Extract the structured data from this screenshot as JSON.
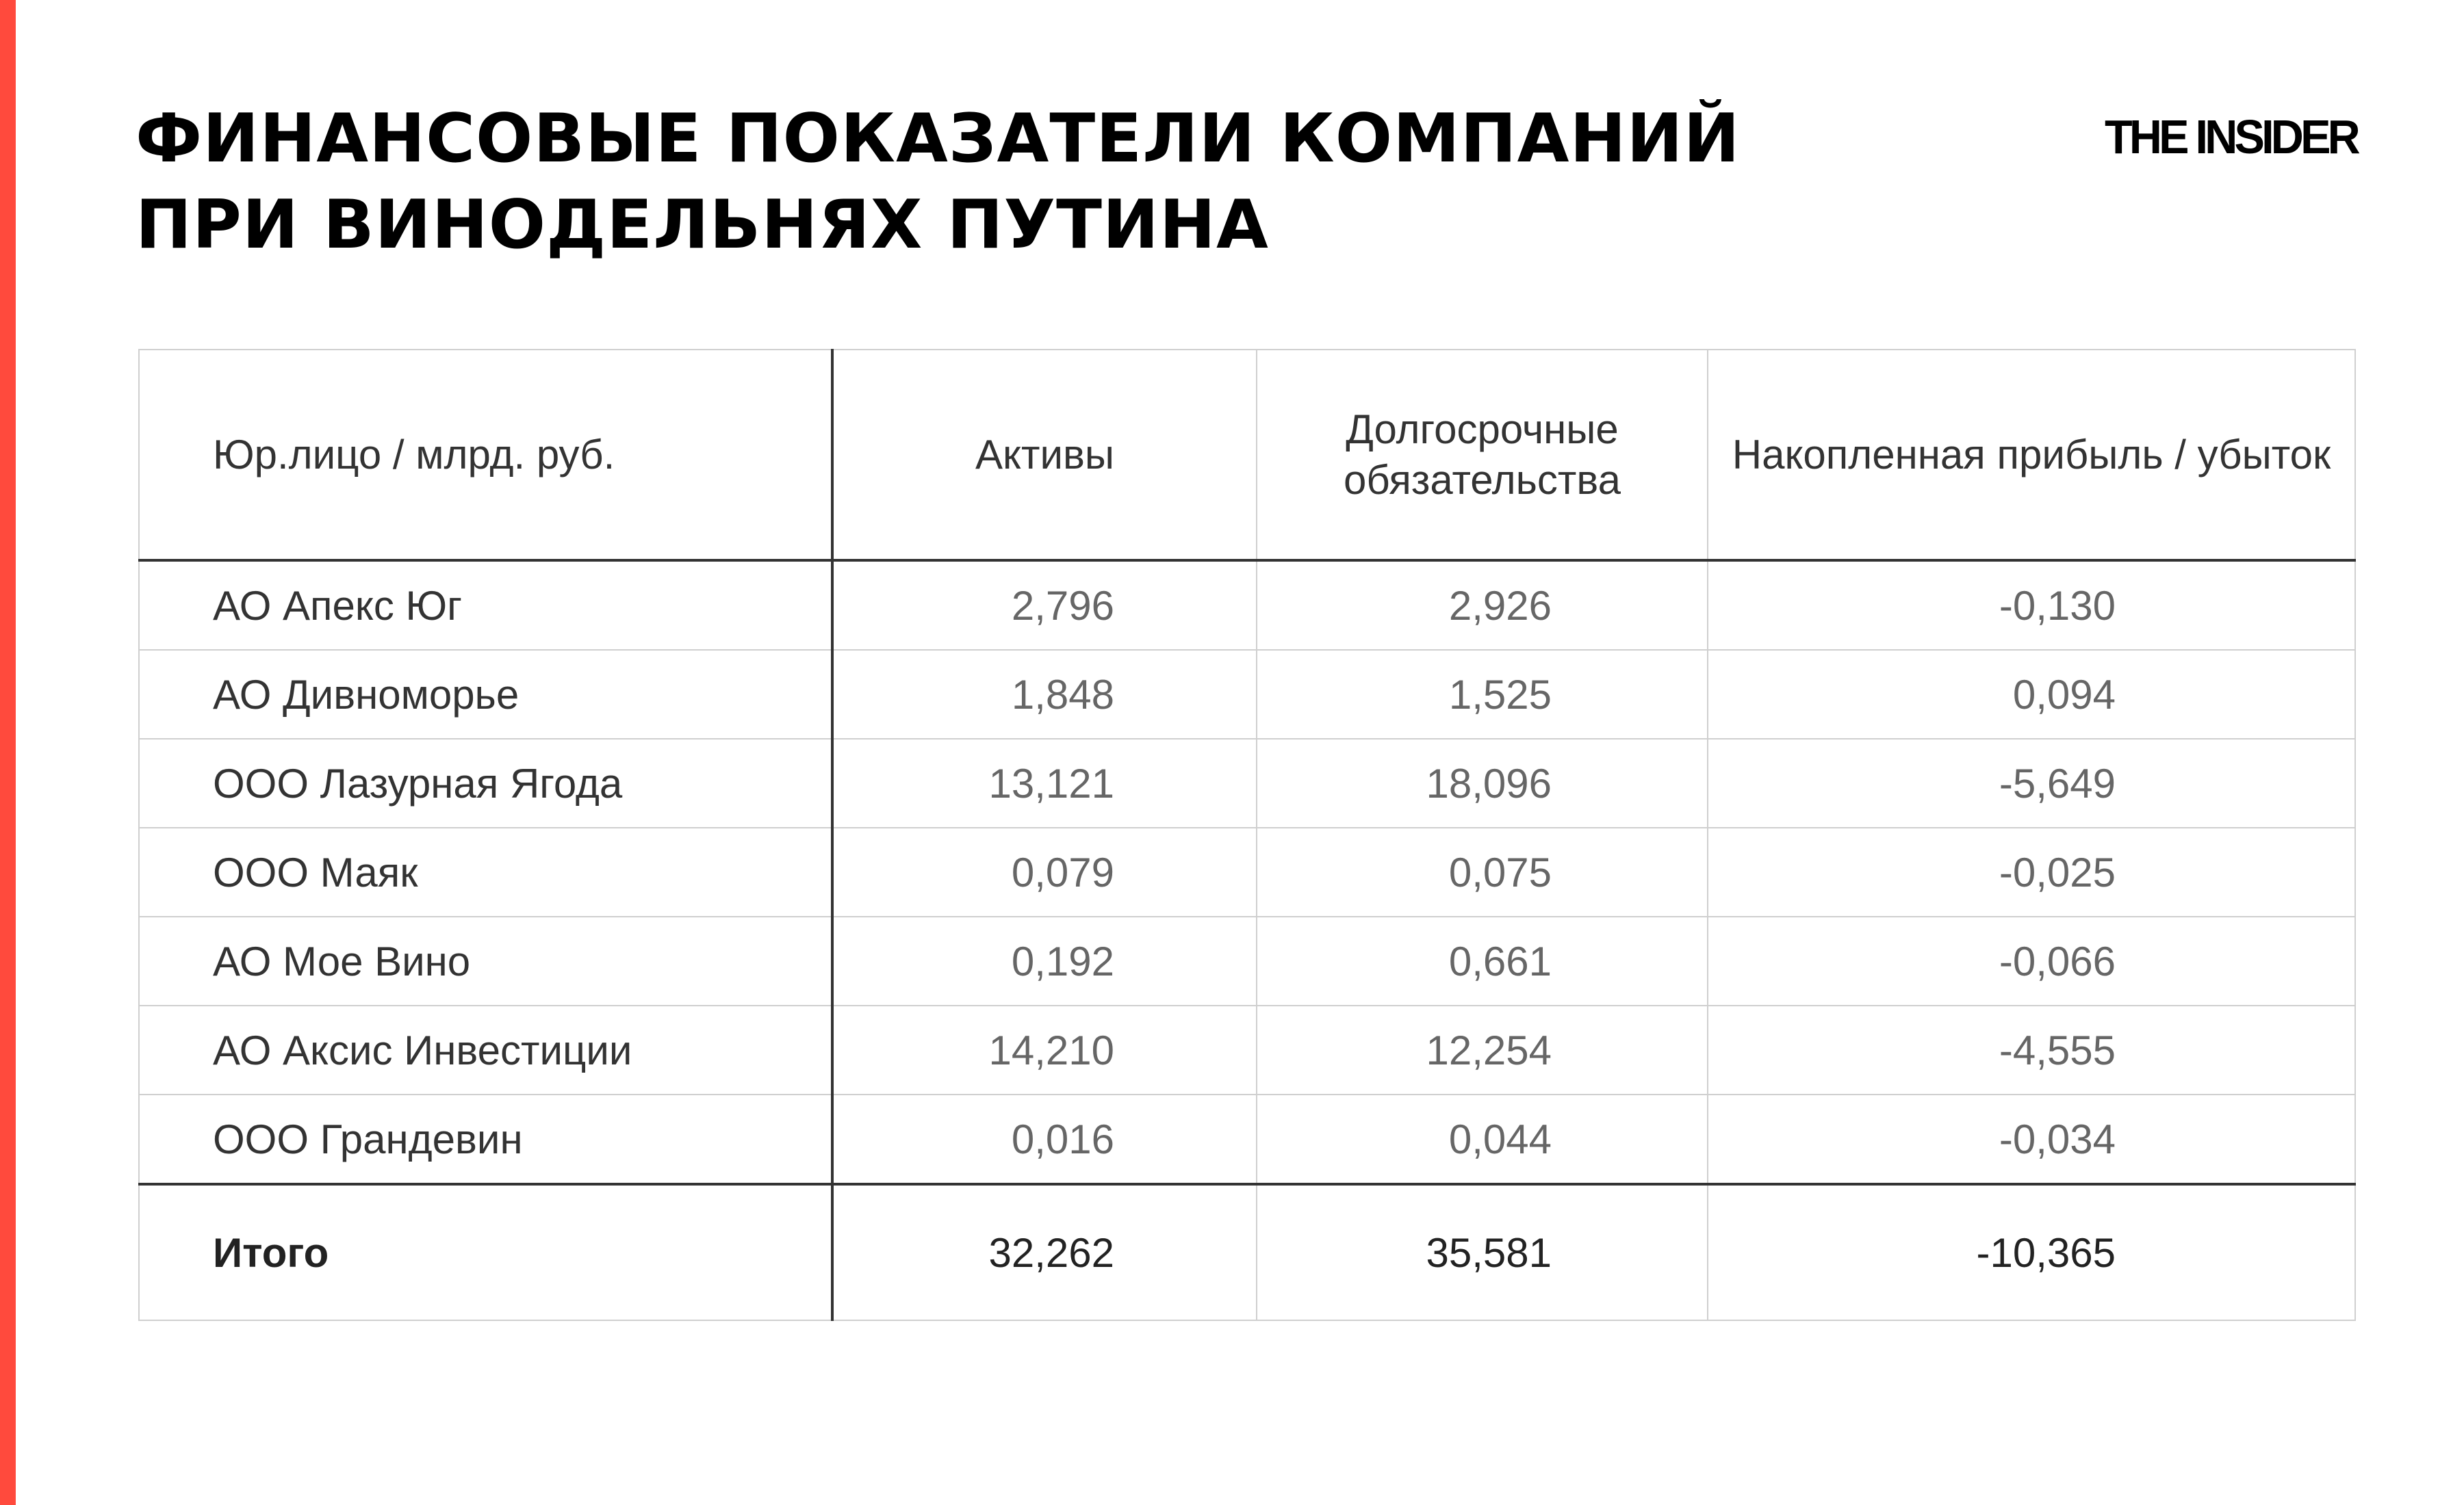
{
  "title": {
    "line1": "ФИНАНСОВЫЕ ПОКАЗАТЕЛИ КОМПАНИЙ",
    "line2": "ПРИ ВИНОДЕЛЬНЯХ ПУТИНА"
  },
  "logo": "THE INSIDER",
  "accent_color": "#ff4a3d",
  "table": {
    "headers": [
      "Юр.лицо / млрд. руб.",
      "Активы",
      "Долгосрочные обязательства",
      "Накопленная прибыль / убыток"
    ],
    "rows": [
      {
        "name": "АО Апекс Юг",
        "assets": "2,796",
        "liabilities": "2,926",
        "profit": "-0,130"
      },
      {
        "name": "АО Дивноморье",
        "assets": "1,848",
        "liabilities": "1,525",
        "profit": "0,094"
      },
      {
        "name": "ООО Лазурная Ягода",
        "assets": "13,121",
        "liabilities": "18,096",
        "profit": "-5,649"
      },
      {
        "name": "ООО Маяк",
        "assets": "0,079",
        "liabilities": "0,075",
        "profit": "-0,025"
      },
      {
        "name": "АО Мое Вино",
        "assets": "0,192",
        "liabilities": "0,661",
        "profit": "-0,066"
      },
      {
        "name": "АО Аксис Инвестиции",
        "assets": "14,210",
        "liabilities": "12,254",
        "profit": "-4,555"
      },
      {
        "name": "ООО Грандевин",
        "assets": "0,016",
        "liabilities": "0,044",
        "profit": "-0,034"
      }
    ],
    "total": {
      "name": "Итого",
      "assets": "32,262",
      "liabilities": "35,581",
      "profit": "-10,365"
    }
  }
}
